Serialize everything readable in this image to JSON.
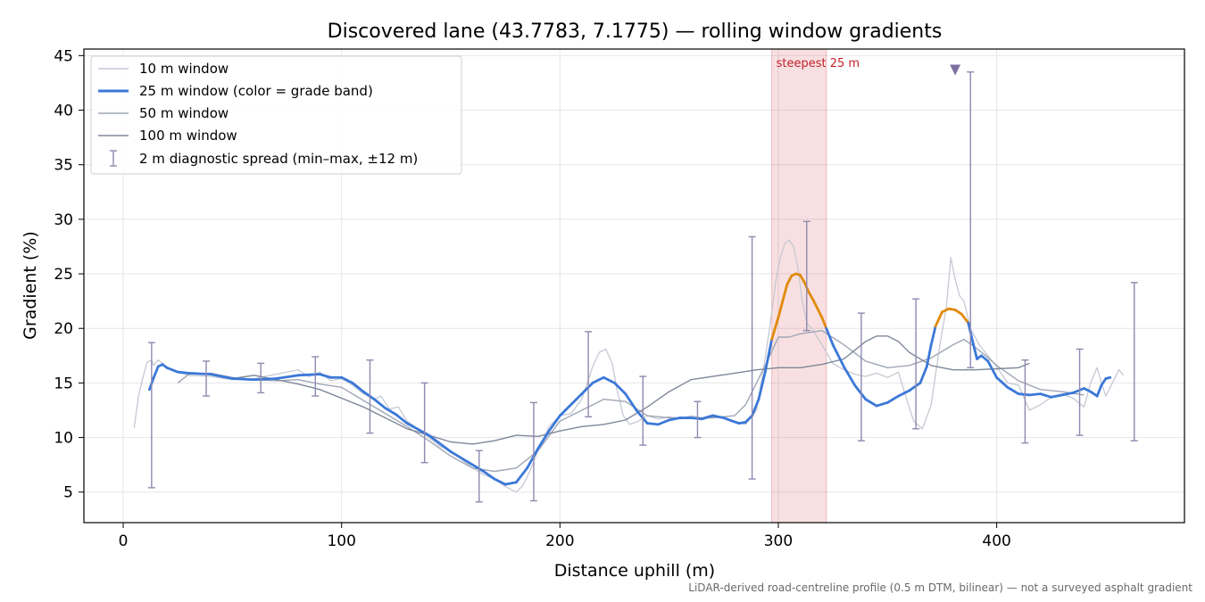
{
  "footnote": "LiDAR-derived road-centreline profile (0.5 m DTM, bilinear) — not a surveyed asphalt gradient",
  "chart_data": {
    "type": "line",
    "title": "Discovered lane (43.7783, 7.1775) — rolling window gradients",
    "xlabel": "Distance uphill (m)",
    "ylabel": "Gradient (%)",
    "xlim": [
      -18,
      486
    ],
    "ylim": [
      2.2,
      45.6
    ],
    "xticks": [
      0,
      100,
      200,
      300,
      400
    ],
    "yticks": [
      5,
      10,
      15,
      20,
      25,
      30,
      35,
      40,
      45
    ],
    "grid": true,
    "legend_position": "top-left",
    "highlight": {
      "x_range": [
        297,
        322
      ],
      "label": "steepest 25 m",
      "color": "#d9545c"
    },
    "max_marker": {
      "x": 381,
      "y": 43.6,
      "color": "#7d6f9f"
    },
    "grade_band_colors": {
      "normal": "#3b78d8",
      "steep": "#e08a0b",
      "very_steep": "#c0222a"
    },
    "series": [
      {
        "name": "10 m window",
        "color": "#c5c9d3",
        "width": 1.3,
        "x": [
          5,
          7,
          9,
          11,
          13,
          14,
          15,
          16,
          18,
          20,
          22,
          25,
          30,
          40,
          50,
          60,
          70,
          80,
          85,
          90,
          95,
          100,
          105,
          110,
          115,
          118,
          122,
          126,
          130,
          135,
          140,
          145,
          150,
          155,
          160,
          165,
          170,
          175,
          180,
          183,
          186,
          190,
          195,
          200,
          205,
          210,
          215,
          218,
          221,
          224,
          226,
          229,
          232,
          236,
          240,
          245,
          250,
          255,
          260,
          265,
          270,
          275,
          280,
          285,
          290,
          293,
          296,
          299,
          301,
          303,
          305,
          307,
          309,
          311,
          313,
          316,
          320,
          325,
          330,
          335,
          340,
          345,
          350,
          355,
          358,
          362,
          366,
          370,
          374,
          377,
          379,
          381,
          383,
          385,
          388,
          392,
          396,
          400,
          405,
          410,
          415,
          420,
          425,
          430,
          435,
          440,
          443,
          446,
          448,
          450,
          453,
          456,
          458
        ],
        "y": [
          10.9,
          13.8,
          15.5,
          16.9,
          17.1,
          16.6,
          16.9,
          17.1,
          16.8,
          16.3,
          16.2,
          16.0,
          15.7,
          15.6,
          15.3,
          15.4,
          15.8,
          16.2,
          15.6,
          16.0,
          15.2,
          15.4,
          14.8,
          14.0,
          13.5,
          13.8,
          12.6,
          12.8,
          11.5,
          10.8,
          10.0,
          9.2,
          8.8,
          8.0,
          7.2,
          6.6,
          6.2,
          5.5,
          5.0,
          5.6,
          6.8,
          8.8,
          11.0,
          12.0,
          12.2,
          13.5,
          16.5,
          17.8,
          18.1,
          16.8,
          14.5,
          12.0,
          11.2,
          11.5,
          12.0,
          11.7,
          11.9,
          11.7,
          12.0,
          11.8,
          12.1,
          11.8,
          11.5,
          11.2,
          12.5,
          16.0,
          20.0,
          24.5,
          26.5,
          27.8,
          28.1,
          27.5,
          25.5,
          22.5,
          20.5,
          19.8,
          18.5,
          16.8,
          16.2,
          15.8,
          15.6,
          15.9,
          15.5,
          16.0,
          14.0,
          11.5,
          10.8,
          13.0,
          18.5,
          22.0,
          26.5,
          24.5,
          23.0,
          22.5,
          20.0,
          18.5,
          17.5,
          16.5,
          15.0,
          14.8,
          12.5,
          13.0,
          13.7,
          14.0,
          13.6,
          12.8,
          15.0,
          16.4,
          15.0,
          13.8,
          15.0,
          16.2,
          15.7
        ]
      },
      {
        "name": "25 m window (color = grade band)",
        "color": "#3b78d8",
        "width": 2.8,
        "x": [
          12,
          14,
          16,
          18,
          20,
          25,
          30,
          40,
          50,
          60,
          70,
          80,
          90,
          95,
          100,
          105,
          110,
          115,
          120,
          125,
          130,
          140,
          150,
          160,
          165,
          170,
          175,
          180,
          185,
          190,
          195,
          200,
          205,
          210,
          215,
          220,
          225,
          230,
          235,
          240,
          245,
          250,
          255,
          260,
          265,
          270,
          275,
          279,
          282,
          285,
          288,
          291,
          294,
          297,
          300,
          302,
          304,
          306,
          308,
          310,
          312,
          314,
          316,
          318,
          320,
          322,
          325,
          330,
          335,
          340,
          345,
          350,
          355,
          360,
          365,
          368,
          370,
          372,
          375,
          378,
          381,
          384,
          387,
          389,
          391,
          393,
          396,
          400,
          405,
          410,
          415,
          420,
          425,
          430,
          435,
          440,
          443,
          446,
          448,
          450,
          452
        ],
        "y": [
          14.4,
          15.5,
          16.5,
          16.7,
          16.4,
          16.0,
          15.9,
          15.8,
          15.4,
          15.3,
          15.4,
          15.7,
          15.8,
          15.5,
          15.5,
          15.0,
          14.2,
          13.5,
          12.7,
          12.1,
          11.3,
          10.2,
          8.7,
          7.5,
          6.9,
          6.2,
          5.7,
          5.9,
          7.2,
          9.0,
          10.6,
          12.0,
          13.0,
          14.0,
          15.0,
          15.5,
          15.0,
          14.0,
          12.5,
          11.3,
          11.2,
          11.6,
          11.8,
          11.8,
          11.7,
          12.0,
          11.8,
          11.5,
          11.3,
          11.4,
          12.0,
          13.5,
          16.0,
          19.0,
          21.0,
          22.5,
          24.0,
          24.8,
          25.0,
          24.9,
          24.2,
          23.3,
          22.6,
          21.8,
          21.0,
          20.0,
          18.5,
          16.5,
          14.8,
          13.5,
          12.9,
          13.2,
          13.8,
          14.3,
          15.0,
          16.5,
          18.5,
          20.2,
          21.5,
          21.8,
          21.7,
          21.3,
          20.5,
          18.8,
          17.2,
          17.5,
          17.0,
          15.5,
          14.6,
          14.0,
          13.9,
          14.0,
          13.7,
          13.9,
          14.1,
          14.5,
          14.2,
          13.8,
          14.8,
          15.4,
          15.5
        ]
      },
      {
        "name": "50 m window",
        "color": "#9fa6b5",
        "width": 1.4,
        "x": [
          25,
          30,
          40,
          50,
          60,
          70,
          80,
          90,
          100,
          110,
          120,
          130,
          140,
          150,
          160,
          170,
          180,
          190,
          200,
          210,
          220,
          230,
          240,
          250,
          260,
          270,
          280,
          285,
          290,
          295,
          300,
          305,
          310,
          320,
          330,
          340,
          350,
          360,
          370,
          380,
          385,
          390,
          395,
          400,
          410,
          420,
          430,
          440
        ],
        "y": [
          15.0,
          15.8,
          15.9,
          15.5,
          15.3,
          15.2,
          15.3,
          14.9,
          14.6,
          13.4,
          12.2,
          11.0,
          9.7,
          8.3,
          7.2,
          6.9,
          7.2,
          8.8,
          11.5,
          12.5,
          13.5,
          13.3,
          12.0,
          11.8,
          11.8,
          11.8,
          12.0,
          13.0,
          15.0,
          17.0,
          19.2,
          19.2,
          19.5,
          19.8,
          18.5,
          17.0,
          16.4,
          16.6,
          17.3,
          18.5,
          19.0,
          18.3,
          17.5,
          16.6,
          15.2,
          14.4,
          14.2,
          13.9
        ]
      },
      {
        "name": "100 m window",
        "color": "#7e8799",
        "width": 1.4,
        "x": [
          50,
          60,
          70,
          80,
          90,
          100,
          110,
          120,
          130,
          140,
          150,
          160,
          170,
          180,
          190,
          200,
          210,
          220,
          230,
          240,
          250,
          260,
          270,
          280,
          290,
          300,
          310,
          320,
          330,
          340,
          345,
          350,
          355,
          360,
          370,
          380,
          390,
          400,
          410,
          415
        ],
        "y": [
          15.4,
          15.7,
          15.3,
          14.9,
          14.4,
          13.6,
          12.8,
          11.8,
          10.8,
          10.2,
          9.6,
          9.4,
          9.7,
          10.2,
          10.1,
          10.6,
          11.0,
          11.2,
          11.6,
          12.8,
          14.2,
          15.3,
          15.6,
          15.9,
          16.2,
          16.4,
          16.4,
          16.7,
          17.2,
          18.8,
          19.3,
          19.3,
          18.8,
          17.8,
          16.6,
          16.2,
          16.2,
          16.3,
          16.4,
          16.8
        ]
      }
    ],
    "diagnostic_spread": {
      "name": "2 m diagnostic spread (min–max, ±12 m)",
      "color": "#8f89b0",
      "x": [
        13,
        38,
        63,
        88,
        113,
        138,
        163,
        188,
        213,
        238,
        263,
        288,
        313,
        338,
        363,
        388,
        413,
        438,
        463
      ],
      "min": [
        5.4,
        13.8,
        14.1,
        13.8,
        10.4,
        7.7,
        4.1,
        4.2,
        11.9,
        9.3,
        10.0,
        6.2,
        19.8,
        9.7,
        10.8,
        16.4,
        9.5,
        10.2,
        9.7
      ],
      "max": [
        18.7,
        17.0,
        16.8,
        17.4,
        17.1,
        15.0,
        8.8,
        13.2,
        19.7,
        15.6,
        13.3,
        28.4,
        29.8,
        21.4,
        22.7,
        43.5,
        17.1,
        18.1,
        24.2
      ]
    }
  }
}
